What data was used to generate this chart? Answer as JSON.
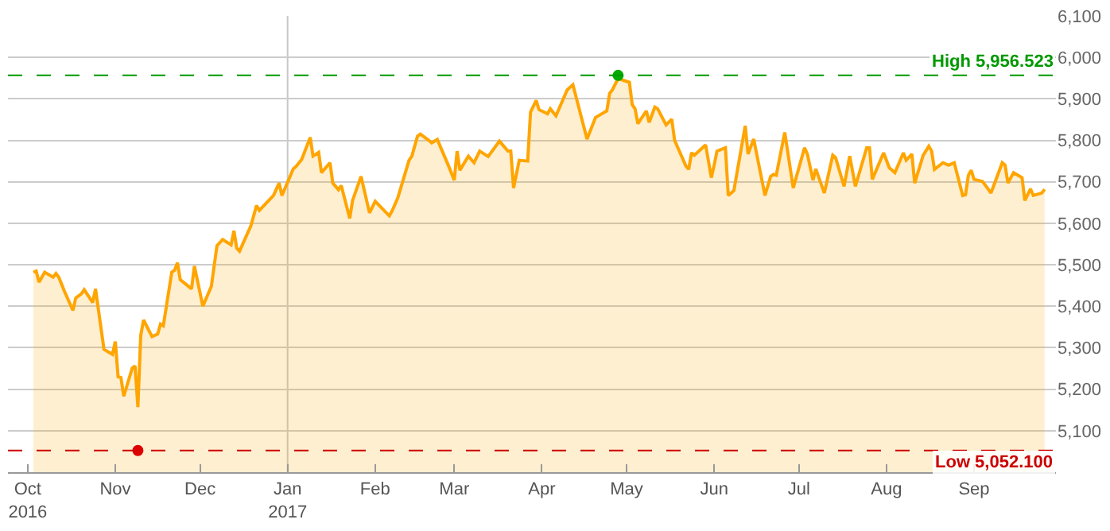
{
  "chart_data": {
    "type": "area",
    "xlim": [
      "2016-09-24",
      "2017-09-30"
    ],
    "xticks": [
      {
        "value": "2016-10-01",
        "label": "Oct\n2016"
      },
      {
        "value": "2016-11-01",
        "label": "Nov"
      },
      {
        "value": "2016-12-01",
        "label": "Dec"
      },
      {
        "value": "2017-01-01",
        "label": "Jan\n2017"
      },
      {
        "value": "2017-02-01",
        "label": "Feb"
      },
      {
        "value": "2017-03-01",
        "label": "Mar"
      },
      {
        "value": "2017-04-01",
        "label": "Apr"
      },
      {
        "value": "2017-05-01",
        "label": "May"
      },
      {
        "value": "2017-06-01",
        "label": "Jun"
      },
      {
        "value": "2017-07-01",
        "label": "Jul"
      },
      {
        "value": "2017-08-01",
        "label": "Aug"
      },
      {
        "value": "2017-09-01",
        "label": "Sep"
      }
    ],
    "ylim": [
      5000,
      6100
    ],
    "yticks": [
      {
        "value": 5100,
        "label": "5,100"
      },
      {
        "value": 5200,
        "label": "5,200"
      },
      {
        "value": 5300,
        "label": "5,300"
      },
      {
        "value": 5400,
        "label": "5,400"
      },
      {
        "value": 5500,
        "label": "5,500"
      },
      {
        "value": 5600,
        "label": "5,600"
      },
      {
        "value": 5700,
        "label": "5,700"
      },
      {
        "value": 5800,
        "label": "5,800"
      },
      {
        "value": 5900,
        "label": "5,900"
      },
      {
        "value": 6000,
        "label": "6,000"
      },
      {
        "value": 6100,
        "label": "6,100"
      }
    ],
    "grid": "y",
    "series": [
      {
        "color": "#ffa500",
        "x": [
          "2016-10-03",
          "2016-10-04",
          "2016-10-05",
          "2016-10-07",
          "2016-10-10",
          "2016-10-11",
          "2016-10-12",
          "2016-10-14",
          "2016-10-17",
          "2016-10-18",
          "2016-10-20",
          "2016-10-21",
          "2016-10-24",
          "2016-10-25",
          "2016-10-28",
          "2016-10-31",
          "2016-11-01",
          "2016-11-02",
          "2016-11-03",
          "2016-11-04",
          "2016-11-07",
          "2016-11-08",
          "2016-11-09",
          "2016-11-10",
          "2016-11-11",
          "2016-11-14",
          "2016-11-16",
          "2016-11-17",
          "2016-11-18",
          "2016-11-21",
          "2016-11-22",
          "2016-11-23",
          "2016-11-24",
          "2016-11-28",
          "2016-11-29",
          "2016-12-02",
          "2016-12-05",
          "2016-12-07",
          "2016-12-09",
          "2016-12-12",
          "2016-12-13",
          "2016-12-14",
          "2016-12-15",
          "2016-12-19",
          "2016-12-21",
          "2016-12-22",
          "2016-12-27",
          "2016-12-29",
          "2016-12-30",
          "2017-01-03",
          "2017-01-04",
          "2017-01-06",
          "2017-01-09",
          "2017-01-10",
          "2017-01-12",
          "2017-01-13",
          "2017-01-16",
          "2017-01-17",
          "2017-01-19",
          "2017-01-20",
          "2017-01-23",
          "2017-01-24",
          "2017-01-27",
          "2017-01-30",
          "2017-02-01",
          "2017-02-02",
          "2017-02-06",
          "2017-02-07",
          "2017-02-09",
          "2017-02-13",
          "2017-02-14",
          "2017-02-16",
          "2017-02-17",
          "2017-02-20",
          "2017-02-21",
          "2017-02-23",
          "2017-02-27",
          "2017-03-01",
          "2017-03-02",
          "2017-03-03",
          "2017-03-06",
          "2017-03-08",
          "2017-03-10",
          "2017-03-13",
          "2017-03-17",
          "2017-03-20",
          "2017-03-21",
          "2017-03-22",
          "2017-03-24",
          "2017-03-27",
          "2017-03-28",
          "2017-03-30",
          "2017-03-31",
          "2017-04-03",
          "2017-04-04",
          "2017-04-06",
          "2017-04-10",
          "2017-04-12",
          "2017-04-17",
          "2017-04-20",
          "2017-04-24",
          "2017-04-25",
          "2017-04-26",
          "2017-04-28",
          "2017-05-02",
          "2017-05-03",
          "2017-05-04",
          "2017-05-05",
          "2017-05-08",
          "2017-05-09",
          "2017-05-11",
          "2017-05-12",
          "2017-05-15",
          "2017-05-17",
          "2017-05-18",
          "2017-05-22",
          "2017-05-23",
          "2017-05-24",
          "2017-05-25",
          "2017-05-29",
          "2017-05-31",
          "2017-06-01",
          "2017-06-02",
          "2017-06-05",
          "2017-06-06",
          "2017-06-08",
          "2017-06-12",
          "2017-06-13",
          "2017-06-15",
          "2017-06-19",
          "2017-06-21",
          "2017-06-22",
          "2017-06-23",
          "2017-06-26",
          "2017-06-29",
          "2017-07-03",
          "2017-07-04",
          "2017-07-06",
          "2017-07-07",
          "2017-07-10",
          "2017-07-13",
          "2017-07-14",
          "2017-07-17",
          "2017-07-19",
          "2017-07-21",
          "2017-07-25",
          "2017-07-26",
          "2017-07-27",
          "2017-07-31",
          "2017-08-02",
          "2017-08-04",
          "2017-08-07",
          "2017-08-08",
          "2017-08-10",
          "2017-08-11",
          "2017-08-14",
          "2017-08-16",
          "2017-08-17",
          "2017-08-18",
          "2017-08-21",
          "2017-08-23",
          "2017-08-25",
          "2017-08-28",
          "2017-08-29",
          "2017-08-30",
          "2017-08-31",
          "2017-09-01",
          "2017-09-04",
          "2017-09-05",
          "2017-09-07",
          "2017-09-11",
          "2017-09-12",
          "2017-09-13",
          "2017-09-15",
          "2017-09-18",
          "2017-09-19",
          "2017-09-21",
          "2017-09-22",
          "2017-09-25",
          "2017-09-26"
        ],
        "values": [
          5482,
          5485,
          5458,
          5482,
          5470,
          5479,
          5470,
          5436,
          5390,
          5420,
          5430,
          5440,
          5409,
          5442,
          5296,
          5284,
          5315,
          5230,
          5228,
          5183,
          5251,
          5256,
          5157,
          5329,
          5367,
          5327,
          5333,
          5357,
          5353,
          5482,
          5487,
          5505,
          5464,
          5442,
          5497,
          5400,
          5448,
          5546,
          5561,
          5548,
          5582,
          5540,
          5533,
          5594,
          5643,
          5631,
          5667,
          5697,
          5667,
          5731,
          5737,
          5754,
          5807,
          5762,
          5771,
          5722,
          5746,
          5697,
          5681,
          5691,
          5612,
          5655,
          5713,
          5625,
          5653,
          5646,
          5618,
          5630,
          5661,
          5752,
          5762,
          5810,
          5815,
          5800,
          5794,
          5802,
          5738,
          5704,
          5774,
          5728,
          5762,
          5746,
          5774,
          5761,
          5798,
          5774,
          5774,
          5685,
          5752,
          5750,
          5868,
          5896,
          5874,
          5864,
          5876,
          5859,
          5922,
          5934,
          5803,
          5855,
          5871,
          5913,
          5922,
          5949,
          5940,
          5886,
          5876,
          5840,
          5871,
          5843,
          5880,
          5876,
          5837,
          5851,
          5800,
          5738,
          5730,
          5770,
          5764,
          5789,
          5710,
          5740,
          5774,
          5782,
          5667,
          5679,
          5835,
          5767,
          5803,
          5667,
          5713,
          5718,
          5716,
          5819,
          5685,
          5782,
          5767,
          5704,
          5731,
          5673,
          5764,
          5758,
          5689,
          5762,
          5689,
          5782,
          5782,
          5706,
          5770,
          5734,
          5722,
          5770,
          5752,
          5767,
          5697,
          5764,
          5786,
          5774,
          5730,
          5746,
          5740,
          5746,
          5667,
          5669,
          5716,
          5728,
          5706,
          5701,
          5692,
          5673,
          5746,
          5740,
          5697,
          5722,
          5710,
          5655,
          5683,
          5667,
          5673,
          5682
        ]
      },
      {
        "type": "scatter",
        "marker": "circle",
        "x": [
          "2016-11-09",
          "2017-04-28"
        ],
        "values": [
          5052.1,
          5956.523
        ],
        "colors": [
          "#dd0000",
          "#00aa00"
        ]
      }
    ],
    "ref_lines": [
      {
        "axis": "y",
        "value": 5956.523,
        "label": "High 5,956.523",
        "color": "#009900",
        "line_style": "dashed"
      },
      {
        "axis": "y",
        "value": 5052.1,
        "label": "Low 5,052.100",
        "color": "#cc0000",
        "line_style": "dashed"
      },
      {
        "axis": "x",
        "value": "2017-01-01",
        "color": "#c8c8c8",
        "line_style": "solid"
      }
    ]
  }
}
